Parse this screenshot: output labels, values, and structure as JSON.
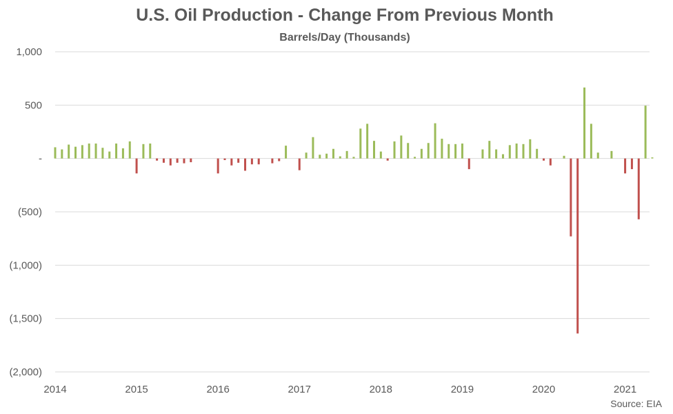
{
  "chart_data": {
    "type": "bar",
    "title": "U.S. Oil Production - Change From Previous Month",
    "subtitle": "Barrels/Day (Thousands)",
    "source": "Source: EIA",
    "ylim": [
      -2000,
      1000
    ],
    "yticks": [
      1000,
      500,
      0,
      -500,
      -1000,
      -1500,
      -2000
    ],
    "ytick_labels": [
      "1,000",
      "500",
      "-",
      "(500)",
      "(1,000)",
      "(1,500)",
      "(2,000)"
    ],
    "xlim": [
      2014,
      2021.3
    ],
    "xtick_labels": [
      "2014",
      "2015",
      "2016",
      "2017",
      "2018",
      "2019",
      "2020",
      "2021"
    ],
    "grid": true,
    "colors": {
      "positive": "#9bbb59",
      "negative": "#c0504d",
      "grid": "#d9d9d9"
    },
    "x": [
      "2014-01",
      "2014-02",
      "2014-03",
      "2014-04",
      "2014-05",
      "2014-06",
      "2014-07",
      "2014-08",
      "2014-09",
      "2014-10",
      "2014-11",
      "2014-12",
      "2015-01",
      "2015-02",
      "2015-03",
      "2015-04",
      "2015-05",
      "2015-06",
      "2015-07",
      "2015-08",
      "2015-09",
      "2015-10",
      "2015-11",
      "2015-12",
      "2016-01",
      "2016-02",
      "2016-03",
      "2016-04",
      "2016-05",
      "2016-06",
      "2016-07",
      "2016-08",
      "2016-09",
      "2016-10",
      "2016-11",
      "2016-12",
      "2017-01",
      "2017-02",
      "2017-03",
      "2017-04",
      "2017-05",
      "2017-06",
      "2017-07",
      "2017-08",
      "2017-09",
      "2017-10",
      "2017-11",
      "2017-12",
      "2018-01",
      "2018-02",
      "2018-03",
      "2018-04",
      "2018-05",
      "2018-06",
      "2018-07",
      "2018-08",
      "2018-09",
      "2018-10",
      "2018-11",
      "2018-12",
      "2019-01",
      "2019-02",
      "2019-03",
      "2019-04",
      "2019-05",
      "2019-06",
      "2019-07",
      "2019-08",
      "2019-09",
      "2019-10",
      "2019-11",
      "2019-12",
      "2020-01",
      "2020-02",
      "2020-03",
      "2020-04",
      "2020-05",
      "2020-06",
      "2020-07",
      "2020-08",
      "2020-09",
      "2020-10",
      "2020-11",
      "2020-12",
      "2021-01",
      "2021-02",
      "2021-03",
      "2021-04",
      "2021-05"
    ],
    "values": [
      105,
      85,
      130,
      110,
      125,
      140,
      140,
      100,
      65,
      140,
      95,
      160,
      -140,
      135,
      140,
      -20,
      -40,
      -65,
      -40,
      -45,
      -35,
      0,
      0,
      0,
      -140,
      -15,
      -65,
      -40,
      -115,
      -55,
      -55,
      0,
      -45,
      -25,
      120,
      0,
      -110,
      55,
      200,
      35,
      45,
      90,
      20,
      70,
      15,
      280,
      325,
      165,
      65,
      -20,
      160,
      215,
      145,
      15,
      90,
      145,
      330,
      185,
      135,
      135,
      140,
      -100,
      0,
      85,
      165,
      85,
      40,
      125,
      140,
      135,
      180,
      90,
      -20,
      -65,
      0,
      25,
      -730,
      -1640,
      665,
      325,
      55,
      0,
      70,
      0,
      -140,
      -100,
      -570,
      495,
      10
    ]
  }
}
